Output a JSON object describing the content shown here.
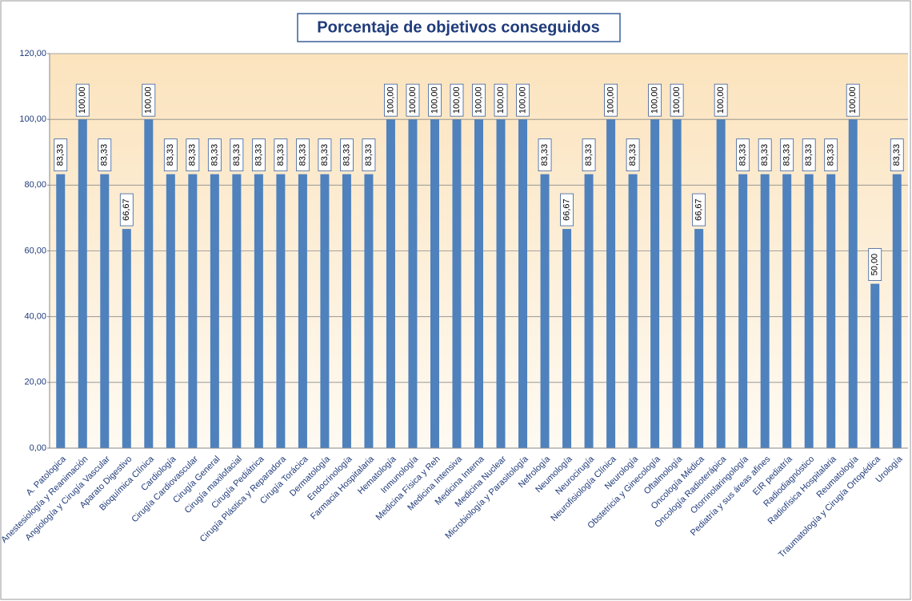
{
  "chart_data": {
    "type": "bar",
    "title": "Porcentaje de objetivos conseguidos",
    "categories": [
      "A. Patologica",
      "Anestesiología y Reanimación",
      "Angiología y Cirugía Vascular",
      "Aparato Digestivo",
      "Bioquímica Clínica",
      "Cardiología",
      "Cirugía Cardiovascular",
      "Cirugía General",
      "Cirugía maxilofacial",
      "Cirugía Pediátrica",
      "Cirugía Plástica y Reparadora",
      "Cirugía Torácica",
      "Dermatología",
      "Endocrinología",
      "Farmacia Hospitalaria",
      "Hematología",
      "Inmunología",
      "Medicina Física y Reh",
      "Medicina Intensiva",
      "Medicina Interna",
      "Medicina Nuclear",
      "Microbiología y Parasitología",
      "Nefrología",
      "Neumología",
      "Neurocirugía",
      "Neurofisiología Clínica",
      "Neurología",
      "Obstetricia y Ginecología",
      "Oftalmología",
      "Oncología Médica",
      "Oncología Radioterápica",
      "Otorrinolaringología",
      "Pediatría y sus áreas afines",
      "EIR pediatría",
      "Radiodiagnóstico",
      "Radiofísica Hospitalaria",
      "Reumatología",
      "Traumatología y Cirugía Ortopédica",
      "Urología"
    ],
    "values": [
      83.33,
      100,
      83.33,
      66.67,
      100,
      83.33,
      83.33,
      83.33,
      83.33,
      83.33,
      83.33,
      83.33,
      83.33,
      83.33,
      83.33,
      100,
      100,
      100,
      100,
      100,
      100,
      100,
      83.33,
      66.67,
      83.33,
      100,
      83.33,
      100,
      100,
      66.67,
      100,
      83.33,
      83.33,
      83.33,
      83.33,
      83.33,
      100,
      50,
      83.33
    ],
    "value_labels": [
      "83,33",
      "100,00",
      "83,33",
      "66,67",
      "100,00",
      "83,33",
      "83,33",
      "83,33",
      "83,33",
      "83,33",
      "83,33",
      "83,33",
      "83,33",
      "83,33",
      "83,33",
      "100,00",
      "100,00",
      "100,00",
      "100,00",
      "100,00",
      "100,00",
      "100,00",
      "83,33",
      "66,67",
      "83,33",
      "100,00",
      "83,33",
      "100,00",
      "100,00",
      "66,67",
      "100,00",
      "83,33",
      "83,33",
      "83,33",
      "83,33",
      "83,33",
      "100,00",
      "50,00",
      "83,33"
    ],
    "color": "#4f81bd",
    "ylim": [
      0,
      120
    ],
    "yticks": [
      {
        "value": 0,
        "label": "0,00"
      },
      {
        "value": 20,
        "label": "20,00"
      },
      {
        "value": 40,
        "label": "40,00"
      },
      {
        "value": 60,
        "label": "60,00"
      },
      {
        "value": 80,
        "label": "80,00"
      },
      {
        "value": 100,
        "label": "100,00"
      },
      {
        "value": 120,
        "label": "120,00"
      }
    ],
    "grid": true
  }
}
